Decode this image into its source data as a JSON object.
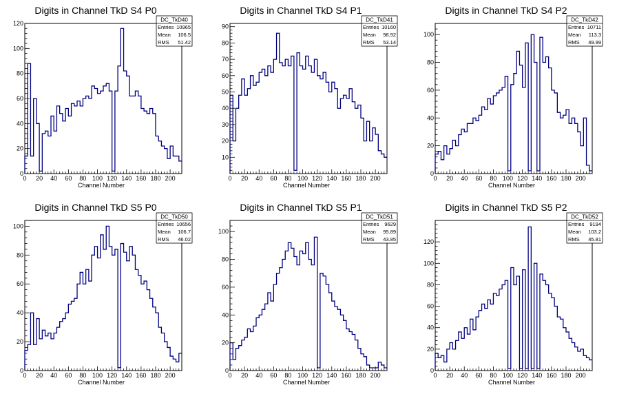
{
  "colors": {
    "line": "#000080",
    "axis": "#000000",
    "background": "#ffffff"
  },
  "chart_data": [
    {
      "type": "histogram",
      "title": "Digits in Channel TkD S4 P0",
      "xlabel": "Channel Number",
      "ylabel": "",
      "xlim": [
        0,
        216
      ],
      "ylim": [
        0,
        120
      ],
      "xticks": [
        0,
        20,
        40,
        60,
        80,
        100,
        120,
        140,
        160,
        180,
        200
      ],
      "yticks": [
        0,
        20,
        40,
        60,
        80,
        100,
        120
      ],
      "stats": {
        "name": "DC_TkD40",
        "labels": [
          "Entries",
          "Mean",
          "RMS"
        ],
        "values": [
          "10965",
          "106.5",
          "51.42"
        ]
      },
      "x": [
        0,
        4,
        8,
        12,
        16,
        20,
        24,
        28,
        32,
        36,
        40,
        44,
        48,
        52,
        56,
        60,
        64,
        68,
        72,
        76,
        80,
        84,
        88,
        92,
        96,
        100,
        104,
        108,
        112,
        116,
        120,
        124,
        128,
        132,
        136,
        140,
        144,
        148,
        152,
        156,
        160,
        164,
        168,
        172,
        176,
        180,
        184,
        188,
        192,
        196,
        200,
        204,
        208,
        212
      ],
      "values": [
        14,
        88,
        14,
        60,
        40,
        2,
        32,
        34,
        30,
        46,
        34,
        54,
        48,
        42,
        52,
        46,
        56,
        54,
        58,
        54,
        60,
        62,
        60,
        70,
        68,
        64,
        66,
        70,
        72,
        66,
        2,
        66,
        86,
        116,
        82,
        78,
        62,
        62,
        66,
        62,
        52,
        50,
        48,
        52,
        48,
        30,
        26,
        22,
        20,
        12,
        22,
        14,
        14,
        10
      ]
    },
    {
      "type": "histogram",
      "title": "Digits in Channel TkD S4 P1",
      "xlabel": "Channel Number",
      "ylabel": "",
      "xlim": [
        0,
        216
      ],
      "ylim": [
        0,
        92
      ],
      "xticks": [
        0,
        20,
        40,
        60,
        80,
        100,
        120,
        140,
        160,
        180,
        200
      ],
      "yticks": [
        10,
        20,
        30,
        40,
        50,
        60,
        70,
        80,
        90
      ],
      "stats": {
        "name": "DC_TkD41",
        "labels": [
          "Entries",
          "Mean",
          "RMS"
        ],
        "values": [
          "10160",
          "98.92",
          "53.14"
        ]
      },
      "x": [
        0,
        4,
        8,
        12,
        16,
        20,
        24,
        28,
        32,
        36,
        40,
        44,
        48,
        52,
        56,
        60,
        64,
        68,
        72,
        76,
        80,
        84,
        88,
        92,
        96,
        100,
        104,
        108,
        112,
        116,
        120,
        124,
        128,
        132,
        136,
        140,
        144,
        148,
        152,
        156,
        160,
        164,
        168,
        172,
        176,
        180,
        184,
        188,
        192,
        196,
        200,
        204,
        208,
        212
      ],
      "values": [
        48,
        20,
        40,
        48,
        58,
        48,
        52,
        60,
        54,
        56,
        62,
        64,
        60,
        66,
        62,
        70,
        86,
        68,
        66,
        70,
        66,
        72,
        2,
        74,
        66,
        64,
        72,
        66,
        62,
        70,
        60,
        58,
        62,
        56,
        50,
        56,
        52,
        40,
        46,
        48,
        46,
        52,
        44,
        40,
        42,
        34,
        20,
        32,
        20,
        28,
        24,
        14,
        12,
        10
      ]
    },
    {
      "type": "histogram",
      "title": "Digits in Channel TkD S4 P2",
      "xlabel": "Channel Number",
      "ylabel": "",
      "xlim": [
        0,
        216
      ],
      "ylim": [
        0,
        108
      ],
      "xticks": [
        0,
        20,
        40,
        60,
        80,
        100,
        120,
        140,
        160,
        180,
        200
      ],
      "yticks": [
        0,
        20,
        40,
        60,
        80,
        100
      ],
      "stats": {
        "name": "DC_TkD42",
        "labels": [
          "Entries",
          "Mean",
          "RMS"
        ],
        "values": [
          "10711",
          "113.3",
          "49.99"
        ]
      },
      "x": [
        0,
        4,
        8,
        12,
        16,
        20,
        24,
        28,
        32,
        36,
        40,
        44,
        48,
        52,
        56,
        60,
        64,
        68,
        72,
        76,
        80,
        84,
        88,
        92,
        96,
        100,
        104,
        108,
        112,
        116,
        120,
        124,
        128,
        132,
        136,
        140,
        144,
        148,
        152,
        156,
        160,
        164,
        168,
        172,
        176,
        180,
        184,
        188,
        192,
        196,
        200,
        204,
        208,
        212
      ],
      "values": [
        14,
        16,
        10,
        20,
        14,
        18,
        24,
        20,
        28,
        32,
        30,
        36,
        36,
        40,
        38,
        42,
        48,
        46,
        54,
        50,
        56,
        58,
        60,
        62,
        70,
        2,
        64,
        72,
        88,
        78,
        62,
        94,
        2,
        100,
        80,
        2,
        98,
        80,
        84,
        76,
        60,
        58,
        44,
        40,
        42,
        46,
        36,
        40,
        36,
        30,
        20,
        40,
        6,
        2
      ]
    },
    {
      "type": "histogram",
      "title": "Digits in Channel TkD S5 P0",
      "xlabel": "Channel Number",
      "ylabel": "",
      "xlim": [
        0,
        216
      ],
      "ylim": [
        0,
        104
      ],
      "xticks": [
        0,
        20,
        40,
        60,
        80,
        100,
        120,
        140,
        160,
        180,
        200
      ],
      "yticks": [
        0,
        20,
        40,
        60,
        80,
        100
      ],
      "stats": {
        "name": "DC_TkD50",
        "labels": [
          "Entries",
          "Mean",
          "RMS"
        ],
        "values": [
          "10656",
          "106.7",
          "46.02"
        ]
      },
      "x": [
        0,
        4,
        8,
        12,
        16,
        20,
        24,
        28,
        32,
        36,
        40,
        44,
        48,
        52,
        56,
        60,
        64,
        68,
        72,
        76,
        80,
        84,
        88,
        92,
        96,
        100,
        104,
        108,
        112,
        116,
        120,
        124,
        128,
        132,
        136,
        140,
        144,
        148,
        152,
        156,
        160,
        164,
        168,
        172,
        176,
        180,
        184,
        188,
        192,
        196,
        200,
        204,
        208,
        212
      ],
      "values": [
        14,
        18,
        40,
        18,
        36,
        22,
        28,
        24,
        26,
        22,
        26,
        30,
        34,
        36,
        40,
        46,
        48,
        50,
        60,
        68,
        60,
        70,
        62,
        80,
        86,
        78,
        94,
        84,
        100,
        86,
        80,
        84,
        2,
        88,
        82,
        76,
        86,
        80,
        70,
        66,
        60,
        62,
        56,
        50,
        44,
        40,
        30,
        26,
        20,
        16,
        10,
        8,
        6,
        12
      ]
    },
    {
      "type": "histogram",
      "title": "Digits in Channel TkD S5 P1",
      "xlabel": "Channel Number",
      "ylabel": "",
      "xlim": [
        0,
        216
      ],
      "ylim": [
        0,
        108
      ],
      "xticks": [
        0,
        20,
        40,
        60,
        80,
        100,
        120,
        140,
        160,
        180,
        200
      ],
      "yticks": [
        0,
        20,
        40,
        60,
        80,
        100
      ],
      "stats": {
        "name": "DC_TkD51",
        "labels": [
          "Entries",
          "Mean",
          "RMS"
        ],
        "values": [
          "9629",
          "95.89",
          "43.85"
        ]
      },
      "x": [
        0,
        4,
        8,
        12,
        16,
        20,
        24,
        28,
        32,
        36,
        40,
        44,
        48,
        52,
        56,
        60,
        64,
        68,
        72,
        76,
        80,
        84,
        88,
        92,
        96,
        100,
        104,
        108,
        112,
        116,
        120,
        124,
        128,
        132,
        136,
        140,
        144,
        148,
        152,
        156,
        160,
        164,
        168,
        172,
        176,
        180,
        184,
        188,
        192,
        196,
        200,
        204,
        208,
        212
      ],
      "values": [
        20,
        8,
        16,
        18,
        22,
        24,
        30,
        28,
        32,
        38,
        40,
        44,
        48,
        56,
        50,
        62,
        70,
        74,
        80,
        86,
        92,
        88,
        82,
        76,
        86,
        84,
        92,
        80,
        76,
        96,
        2,
        70,
        68,
        62,
        56,
        50,
        46,
        44,
        40,
        36,
        30,
        28,
        26,
        22,
        16,
        12,
        10,
        4,
        2,
        2,
        2,
        6,
        4,
        2
      ]
    },
    {
      "type": "histogram",
      "title": "Digits in Channel TkD S5 P2",
      "xlabel": "Channel Number",
      "ylabel": "",
      "xlim": [
        0,
        216
      ],
      "ylim": [
        0,
        140
      ],
      "xticks": [
        0,
        20,
        40,
        60,
        80,
        100,
        120,
        140,
        160,
        180,
        200
      ],
      "yticks": [
        0,
        20,
        40,
        60,
        80,
        100,
        120
      ],
      "stats": {
        "name": "DC_TkD52",
        "labels": [
          "Entries",
          "Mean",
          "RMS"
        ],
        "values": [
          "9194",
          "103.2",
          "45.81"
        ]
      },
      "x": [
        0,
        4,
        8,
        12,
        16,
        20,
        24,
        28,
        32,
        36,
        40,
        44,
        48,
        52,
        56,
        60,
        64,
        68,
        72,
        76,
        80,
        84,
        88,
        92,
        96,
        100,
        104,
        108,
        112,
        116,
        120,
        124,
        128,
        132,
        136,
        140,
        144,
        148,
        152,
        156,
        160,
        164,
        168,
        172,
        176,
        180,
        184,
        188,
        192,
        196,
        200,
        204,
        208,
        212
      ],
      "values": [
        16,
        12,
        14,
        8,
        20,
        26,
        20,
        28,
        36,
        30,
        40,
        34,
        48,
        38,
        50,
        56,
        62,
        58,
        66,
        62,
        72,
        70,
        76,
        80,
        84,
        2,
        96,
        80,
        88,
        2,
        94,
        2,
        134,
        2,
        100,
        2,
        90,
        84,
        80,
        72,
        68,
        60,
        50,
        48,
        40,
        36,
        30,
        26,
        22,
        18,
        20,
        14,
        12,
        10
      ]
    }
  ]
}
